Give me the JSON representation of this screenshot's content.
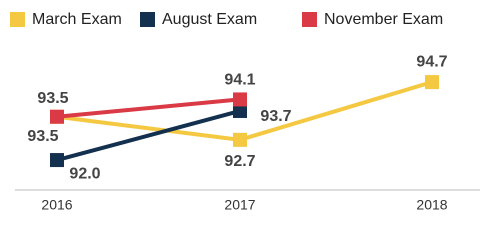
{
  "chart_data": {
    "type": "line",
    "categories": [
      "2016",
      "2017",
      "2018"
    ],
    "ylim": [
      91.5,
      95.5
    ],
    "legend": "top",
    "series": [
      {
        "name": "March Exam",
        "color": "#f5c842",
        "values": [
          93.5,
          92.7,
          94.7
        ],
        "value_labels": [
          "93.5",
          "92.7",
          "94.7"
        ]
      },
      {
        "name": "August Exam",
        "color": "#14304f",
        "values": [
          92.0,
          93.7,
          null
        ],
        "value_labels": [
          "92.0",
          "93.7",
          null
        ]
      },
      {
        "name": "November Exam",
        "color": "#d93a45",
        "values": [
          93.5,
          94.1,
          null
        ],
        "value_labels": [
          "93.5",
          "94.1",
          null
        ]
      }
    ]
  }
}
